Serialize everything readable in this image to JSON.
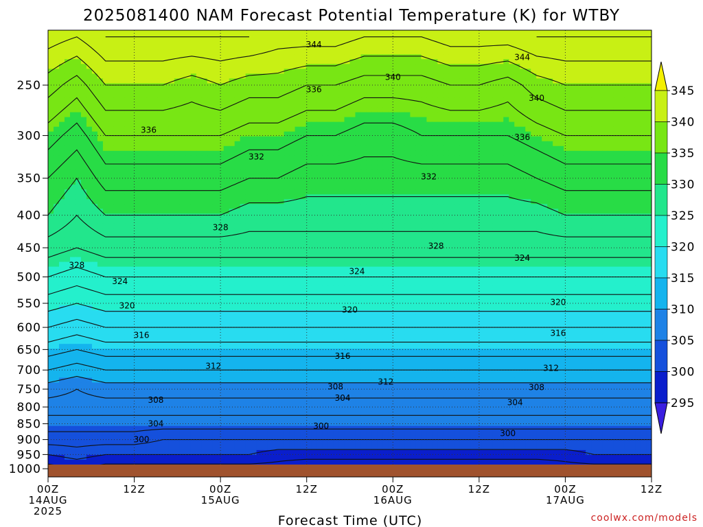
{
  "chart_data": {
    "type": "heatmap",
    "title": "2025081400 NAM Forecast Potential Temperature (K) for WTBY",
    "xlabel": "Forecast Time (UTC)",
    "ylabel": "",
    "credit": "coolwx.com/models",
    "y_axis": {
      "scale": "log",
      "direction": "inverted",
      "range": [
        1030,
        205
      ],
      "ticks": [
        250,
        300,
        350,
        400,
        450,
        500,
        550,
        600,
        650,
        700,
        750,
        800,
        850,
        900,
        950,
        1000
      ]
    },
    "x_axis": {
      "range_hours": [
        0,
        84
      ],
      "ticks": [
        {
          "hour": 0,
          "lines": [
            "00Z",
            "14AUG",
            "2025"
          ]
        },
        {
          "hour": 12,
          "lines": [
            "12Z"
          ]
        },
        {
          "hour": 24,
          "lines": [
            "00Z",
            "15AUG"
          ]
        },
        {
          "hour": 36,
          "lines": [
            "12Z"
          ]
        },
        {
          "hour": 48,
          "lines": [
            "00Z",
            "16AUG"
          ]
        },
        {
          "hour": 60,
          "lines": [
            "12Z"
          ]
        },
        {
          "hour": 72,
          "lines": [
            "00Z",
            "17AUG"
          ]
        },
        {
          "hour": 84,
          "lines": [
            "12Z"
          ]
        }
      ]
    },
    "grid": true,
    "colorbar": {
      "levels": [
        295,
        300,
        305,
        310,
        315,
        320,
        325,
        330,
        335,
        340,
        345
      ],
      "colors": [
        "#3a1ee0",
        "#0a1ecc",
        "#1550dc",
        "#1e82e6",
        "#14b4ee",
        "#28dcf0",
        "#24f0cc",
        "#22e68c",
        "#28dc46",
        "#78e614",
        "#c8f014",
        "#f4f000"
      ]
    },
    "profile_hours": [
      0,
      4,
      8,
      12,
      16,
      20,
      24,
      28,
      32,
      36,
      40,
      44,
      48,
      52,
      56,
      60,
      64,
      68,
      72,
      76,
      80,
      84
    ],
    "profile_pressures": [
      1000,
      950,
      900,
      850,
      800,
      750,
      700,
      650,
      600,
      550,
      500,
      450,
      400,
      350,
      300,
      250,
      210
    ],
    "theta_profiles": [
      [
        297,
        300,
        303,
        305,
        307,
        309,
        312,
        315,
        318,
        321,
        324,
        327,
        330,
        332,
        335,
        339,
        343
      ],
      [
        298,
        301,
        303,
        305,
        307,
        308,
        311,
        314,
        317,
        320,
        323,
        326,
        328,
        330,
        333,
        337,
        342
      ],
      [
        297,
        300,
        303,
        305,
        307,
        309,
        312,
        315,
        318,
        321,
        324,
        327,
        330,
        333,
        336,
        340,
        344
      ],
      [
        297,
        300,
        303,
        305,
        307,
        309,
        312,
        315,
        318,
        321,
        324,
        327,
        330,
        333,
        336,
        340,
        344
      ],
      [
        297,
        300,
        302,
        305,
        307,
        309,
        312,
        315,
        318,
        321,
        324,
        327,
        330,
        333,
        336,
        340,
        344
      ],
      [
        297,
        300,
        302,
        305,
        307,
        309,
        312,
        315,
        318,
        321,
        324,
        327,
        330,
        333,
        336,
        339,
        344
      ],
      [
        297,
        300,
        302,
        305,
        307,
        309,
        312,
        315,
        318,
        321,
        324,
        327,
        330,
        333,
        336,
        340,
        344
      ],
      [
        297,
        300,
        302,
        305,
        307,
        309,
        312,
        315,
        318,
        321,
        324,
        327,
        329,
        332,
        335,
        339,
        344
      ],
      [
        297,
        299,
        302,
        305,
        307,
        309,
        312,
        315,
        318,
        321,
        324,
        327,
        329,
        332,
        335,
        339,
        343
      ],
      [
        296,
        299,
        302,
        305,
        307,
        309,
        312,
        315,
        318,
        321,
        324,
        327,
        329,
        331,
        334,
        338,
        343
      ],
      [
        296,
        299,
        302,
        305,
        307,
        309,
        312,
        315,
        318,
        321,
        324,
        327,
        329,
        331,
        334,
        338,
        343
      ],
      [
        296,
        299,
        302,
        305,
        307,
        309,
        312,
        315,
        318,
        321,
        324,
        327,
        329,
        331,
        333,
        337,
        342
      ],
      [
        296,
        299,
        302,
        305,
        307,
        309,
        312,
        315,
        318,
        321,
        324,
        327,
        329,
        331,
        333,
        337,
        342
      ],
      [
        296,
        299,
        302,
        305,
        307,
        309,
        312,
        315,
        318,
        321,
        324,
        327,
        329,
        331,
        334,
        337,
        342
      ],
      [
        296,
        299,
        302,
        305,
        307,
        309,
        312,
        315,
        318,
        321,
        324,
        327,
        329,
        331,
        334,
        338,
        343
      ],
      [
        296,
        299,
        302,
        305,
        307,
        309,
        312,
        315,
        318,
        321,
        324,
        327,
        329,
        331,
        334,
        338,
        343
      ],
      [
        296,
        299,
        302,
        305,
        307,
        309,
        312,
        315,
        318,
        321,
        324,
        327,
        329,
        331,
        334,
        337,
        343
      ],
      [
        296,
        299,
        302,
        305,
        307,
        309,
        312,
        315,
        318,
        321,
        324,
        327,
        329,
        332,
        335,
        339,
        344
      ],
      [
        297,
        299,
        302,
        305,
        307,
        309,
        312,
        315,
        318,
        321,
        324,
        327,
        330,
        333,
        336,
        340,
        344
      ],
      [
        297,
        300,
        302,
        305,
        307,
        309,
        312,
        315,
        318,
        321,
        324,
        327,
        330,
        333,
        336,
        340,
        344
      ],
      [
        297,
        300,
        302,
        305,
        307,
        309,
        312,
        315,
        318,
        321,
        324,
        327,
        330,
        333,
        336,
        340,
        344
      ],
      [
        297,
        300,
        302,
        305,
        307,
        309,
        312,
        315,
        318,
        321,
        324,
        327,
        330,
        333,
        336,
        340,
        344
      ]
    ],
    "contour_labels": [
      {
        "value": "344",
        "hour": 37,
        "p": 216
      },
      {
        "value": "344",
        "hour": 66,
        "p": 226
      },
      {
        "value": "340",
        "hour": 48,
        "p": 243
      },
      {
        "value": "340",
        "hour": 68,
        "p": 262
      },
      {
        "value": "336",
        "hour": 37,
        "p": 254
      },
      {
        "value": "336",
        "hour": 14,
        "p": 294
      },
      {
        "value": "336",
        "hour": 66,
        "p": 302
      },
      {
        "value": "332",
        "hour": 29,
        "p": 324
      },
      {
        "value": "332",
        "hour": 53,
        "p": 348
      },
      {
        "value": "328",
        "hour": 24,
        "p": 418
      },
      {
        "value": "328",
        "hour": 54,
        "p": 447
      },
      {
        "value": "328",
        "hour": 4,
        "p": 479
      },
      {
        "value": "324",
        "hour": 66,
        "p": 467
      },
      {
        "value": "324",
        "hour": 43,
        "p": 490
      },
      {
        "value": "324",
        "hour": 10,
        "p": 508
      },
      {
        "value": "320",
        "hour": 11,
        "p": 555
      },
      {
        "value": "320",
        "hour": 42,
        "p": 563
      },
      {
        "value": "320",
        "hour": 71,
        "p": 548
      },
      {
        "value": "316",
        "hour": 13,
        "p": 617
      },
      {
        "value": "316",
        "hour": 41,
        "p": 666
      },
      {
        "value": "316",
        "hour": 71,
        "p": 613
      },
      {
        "value": "312",
        "hour": 23,
        "p": 690
      },
      {
        "value": "312",
        "hour": 47,
        "p": 731
      },
      {
        "value": "312",
        "hour": 70,
        "p": 695
      },
      {
        "value": "308",
        "hour": 40,
        "p": 743
      },
      {
        "value": "308",
        "hour": 68,
        "p": 745
      },
      {
        "value": "308",
        "hour": 15,
        "p": 780
      },
      {
        "value": "304",
        "hour": 41,
        "p": 774
      },
      {
        "value": "304",
        "hour": 65,
        "p": 787
      },
      {
        "value": "304",
        "hour": 15,
        "p": 850
      },
      {
        "value": "300",
        "hour": 38,
        "p": 857
      },
      {
        "value": "300",
        "hour": 64,
        "p": 880
      },
      {
        "value": "300",
        "hour": 13,
        "p": 900
      }
    ]
  }
}
